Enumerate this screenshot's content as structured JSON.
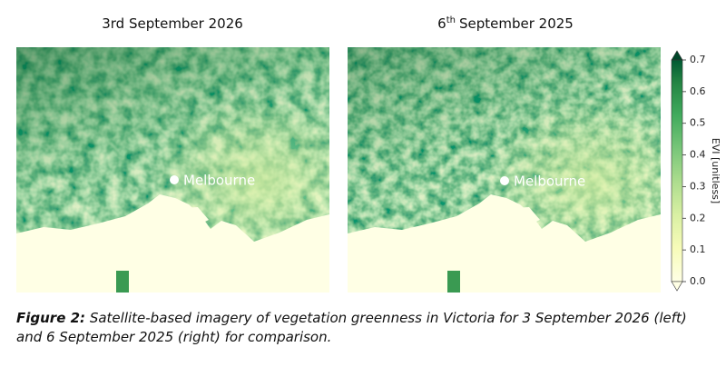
{
  "panels": [
    {
      "title": "3rd September 2026",
      "marker_label": "Melbourne"
    },
    {
      "title_number": "6",
      "title_sup": "th",
      "title_rest": "September 2025",
      "marker_label": "Melbourne"
    }
  ],
  "colorbar": {
    "label": "EVI [unitless]",
    "clim": [
      0,
      0.7
    ],
    "ticks": [
      {
        "value": 0,
        "label": "0.0"
      },
      0.1,
      0.2,
      0.3,
      0.4,
      0.5,
      0.6,
      0.7
    ]
  },
  "caption": {
    "label": "Figure 2:",
    "text": "Satellite-based imagery of vegetation greenness in Victoria for 3 September 2026 (left) and 6 September 2025 (right) for comparison."
  }
}
